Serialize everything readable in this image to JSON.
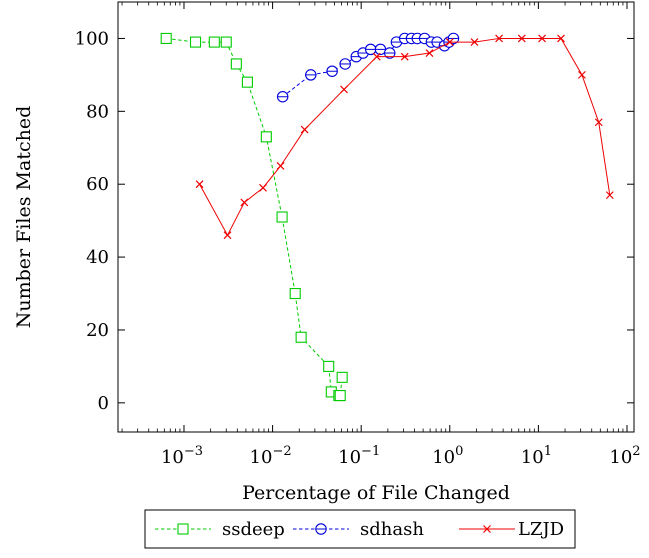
{
  "chart_data": {
    "type": "line",
    "title": "",
    "xlabel": "Percentage of File Changed",
    "ylabel": "Number Files Matched",
    "x_scale": "log",
    "xlim": [
      0.00018,
      120
    ],
    "ylim": [
      -8,
      110
    ],
    "x_ticks": [
      {
        "value": 0.001,
        "base": "10",
        "exp": "−3"
      },
      {
        "value": 0.01,
        "base": "10",
        "exp": "−2"
      },
      {
        "value": 0.1,
        "base": "10",
        "exp": "−1"
      },
      {
        "value": 1,
        "base": "10",
        "exp": "0"
      },
      {
        "value": 10,
        "base": "10",
        "exp": "1"
      },
      {
        "value": 100,
        "base": "10",
        "exp": "2"
      }
    ],
    "y_ticks": [
      0,
      20,
      40,
      60,
      80,
      100
    ],
    "grid": false,
    "legend_position": "bottom",
    "series": [
      {
        "name": "ssdeep",
        "color": "#00cc00",
        "dash": "dashed",
        "marker": "square",
        "x": [
          0.00063,
          0.00135,
          0.0022,
          0.003,
          0.0039,
          0.0052,
          0.0085,
          0.0128,
          0.018,
          0.021,
          0.043,
          0.046,
          0.056,
          0.058,
          0.061
        ],
        "y": [
          100,
          99,
          99,
          99,
          93,
          88,
          73,
          51,
          30,
          18,
          10,
          3,
          2,
          2,
          7
        ]
      },
      {
        "name": "sdhash",
        "color": "#0000dd",
        "dash": "dashed",
        "marker": "circle",
        "x": [
          0.013,
          0.027,
          0.047,
          0.066,
          0.088,
          0.105,
          0.128,
          0.165,
          0.21,
          0.25,
          0.31,
          0.37,
          0.43,
          0.52,
          0.62,
          0.72,
          0.87,
          0.98,
          1.1
        ],
        "y": [
          84,
          90,
          91,
          93,
          95,
          96,
          97,
          97,
          96,
          99,
          100,
          100,
          100,
          100,
          99,
          99,
          98,
          99,
          100
        ]
      },
      {
        "name": "LZJD",
        "color": "#ee0000",
        "dash": "solid",
        "marker": "cross",
        "x": [
          0.0015,
          0.0031,
          0.0048,
          0.0078,
          0.0123,
          0.023,
          0.064,
          0.15,
          0.31,
          0.59,
          1.0,
          1.9,
          3.6,
          6.5,
          11,
          18,
          31,
          48,
          64
        ],
        "y": [
          60,
          46,
          55,
          59,
          65,
          75,
          86,
          95,
          95,
          96,
          99,
          99,
          100,
          100,
          100,
          100,
          90,
          77,
          57
        ]
      }
    ]
  }
}
